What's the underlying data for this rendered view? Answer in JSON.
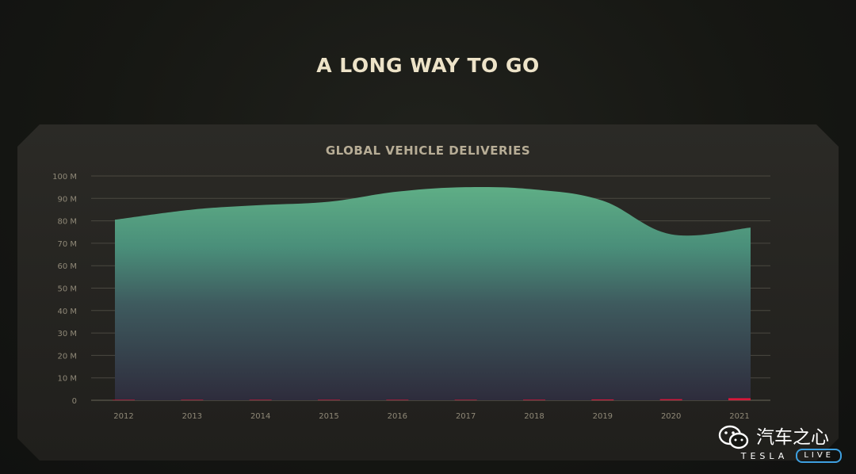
{
  "slide": {
    "title": "A LONG WAY TO GO"
  },
  "watermark": {
    "channel_name": "汽车之心",
    "brand": "TESLA",
    "badge": "LIVE"
  },
  "chart_data": {
    "type": "area",
    "title": "GLOBAL VEHICLE DELIVERIES",
    "x": [
      "2012",
      "2013",
      "2014",
      "2015",
      "2016",
      "2017",
      "2018",
      "2019",
      "2020",
      "2021"
    ],
    "series": [
      {
        "values": [
          80.5,
          85,
          87,
          88.5,
          93,
          95,
          94,
          89,
          74,
          77
        ],
        "color": "#5dae85"
      },
      {
        "values": [
          0.03,
          0.02,
          0.03,
          0.05,
          0.08,
          0.1,
          0.25,
          0.37,
          0.5,
          0.94
        ],
        "color": "#d8173a"
      }
    ],
    "yticks": [
      "0",
      "10 M",
      "20 M",
      "30 M",
      "40 M",
      "50 M",
      "60 M",
      "70 M",
      "80 M",
      "90 M",
      "100 M"
    ],
    "ylim": [
      0,
      100
    ],
    "grid": true,
    "legend": "none"
  }
}
